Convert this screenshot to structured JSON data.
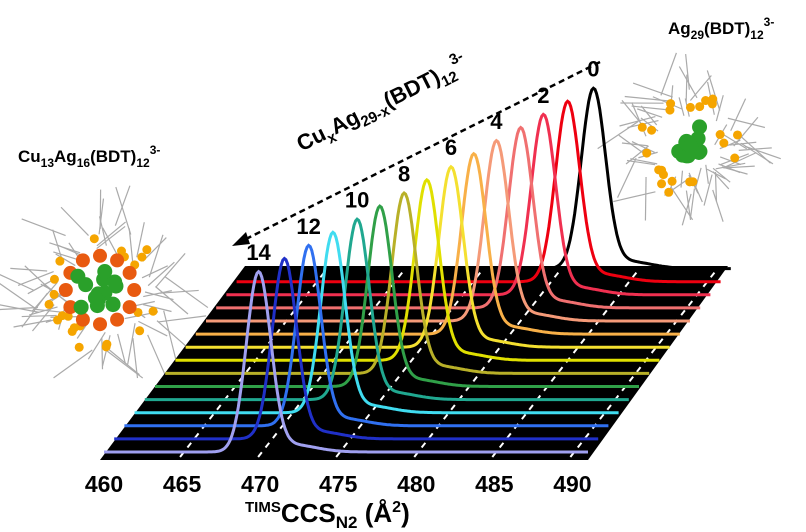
{
  "chart_data": {
    "type": "waterfall",
    "series_title": [
      "Cu",
      "x",
      "Ag",
      "29-x",
      "(BDT)",
      "12",
      "3-"
    ],
    "left_label": [
      "Cu",
      "13",
      "Ag",
      "16",
      "(BDT)",
      "12",
      "3-"
    ],
    "right_label": [
      "Ag",
      "29",
      "(BDT)",
      "12",
      "3-"
    ],
    "x_title": [
      "TIMS",
      "CCS",
      "N2",
      " (Å",
      "2",
      ")"
    ],
    "xlim": [
      460,
      491
    ],
    "xticks": [
      460,
      465,
      470,
      475,
      480,
      485,
      490
    ],
    "series": [
      {
        "label": "0",
        "peak": 482.2,
        "color": "#000000"
      },
      {
        "label": null,
        "peak": 481.2,
        "color": "#ee0010"
      },
      {
        "label": "2",
        "peak": 480.3,
        "color": "#f03050"
      },
      {
        "label": null,
        "peak": 479.5,
        "color": "#f07070"
      },
      {
        "label": "4",
        "peak": 478.6,
        "color": "#f59a78"
      },
      {
        "label": null,
        "peak": 477.8,
        "color": "#f8b048"
      },
      {
        "label": "6",
        "peak": 477.0,
        "color": "#f4e030"
      },
      {
        "label": null,
        "peak": 476.1,
        "color": "#e0e000"
      },
      {
        "label": "8",
        "peak": 475.3,
        "color": "#b8b028"
      },
      {
        "label": null,
        "peak": 474.4,
        "color": "#30a048"
      },
      {
        "label": "10",
        "peak": 473.6,
        "color": "#20a890"
      },
      {
        "label": null,
        "peak": 472.7,
        "color": "#40dcf0"
      },
      {
        "label": "12",
        "peak": 471.8,
        "color": "#3070f0"
      },
      {
        "label": null,
        "peak": 470.9,
        "color": "#2030c8"
      },
      {
        "label": "14",
        "peak": 469.9,
        "color": "#a0a0f0"
      }
    ]
  }
}
